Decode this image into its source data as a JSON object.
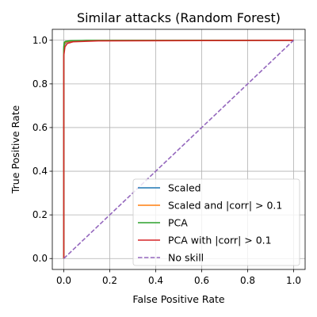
{
  "chart_data": {
    "type": "line",
    "title": "Similar attacks (Random Forest)",
    "xlabel": "False Positive Rate",
    "ylabel": "True Positive Rate",
    "xlim": [
      -0.05,
      1.05
    ],
    "ylim": [
      -0.05,
      1.05
    ],
    "xticks": [
      0.0,
      0.2,
      0.4,
      0.6,
      0.8,
      1.0
    ],
    "yticks": [
      0.0,
      0.2,
      0.4,
      0.6,
      0.8,
      1.0
    ],
    "xtick_labels": [
      "0.0",
      "0.2",
      "0.4",
      "0.6",
      "0.8",
      "1.0"
    ],
    "ytick_labels": [
      "0.0",
      "0.2",
      "0.4",
      "0.6",
      "0.8",
      "1.0"
    ],
    "grid": true,
    "legend_position": "lower-right",
    "series": [
      {
        "name": "Scaled",
        "color": "#1f77b4",
        "dashed": false,
        "x": [
          0.0,
          0.0,
          0.003,
          0.01,
          0.03,
          0.1,
          1.0
        ],
        "y": [
          0.0,
          0.95,
          0.98,
          0.99,
          0.995,
          0.999,
          1.0
        ]
      },
      {
        "name": "Scaled and |corr| > 0.1",
        "color": "#ff7f0e",
        "dashed": false,
        "x": [
          0.0,
          0.0,
          0.003,
          0.01,
          0.03,
          0.1,
          1.0
        ],
        "y": [
          0.0,
          0.96,
          0.985,
          0.992,
          0.996,
          0.999,
          1.0
        ]
      },
      {
        "name": "PCA",
        "color": "#2ca02c",
        "dashed": false,
        "x": [
          0.0,
          0.0,
          0.002,
          0.008,
          0.03,
          0.1,
          1.0
        ],
        "y": [
          0.0,
          0.97,
          0.99,
          0.995,
          0.998,
          0.999,
          1.0
        ]
      },
      {
        "name": "PCA with |corr| > 0.1",
        "color": "#d62728",
        "dashed": false,
        "x": [
          0.0,
          0.0,
          0.005,
          0.015,
          0.04,
          0.15,
          1.0
        ],
        "y": [
          0.0,
          0.93,
          0.97,
          0.985,
          0.993,
          0.997,
          1.0
        ]
      },
      {
        "name": "No skill",
        "color": "#9467bd",
        "dashed": true,
        "x": [
          0.0,
          1.0
        ],
        "y": [
          0.0,
          1.0
        ]
      }
    ]
  }
}
